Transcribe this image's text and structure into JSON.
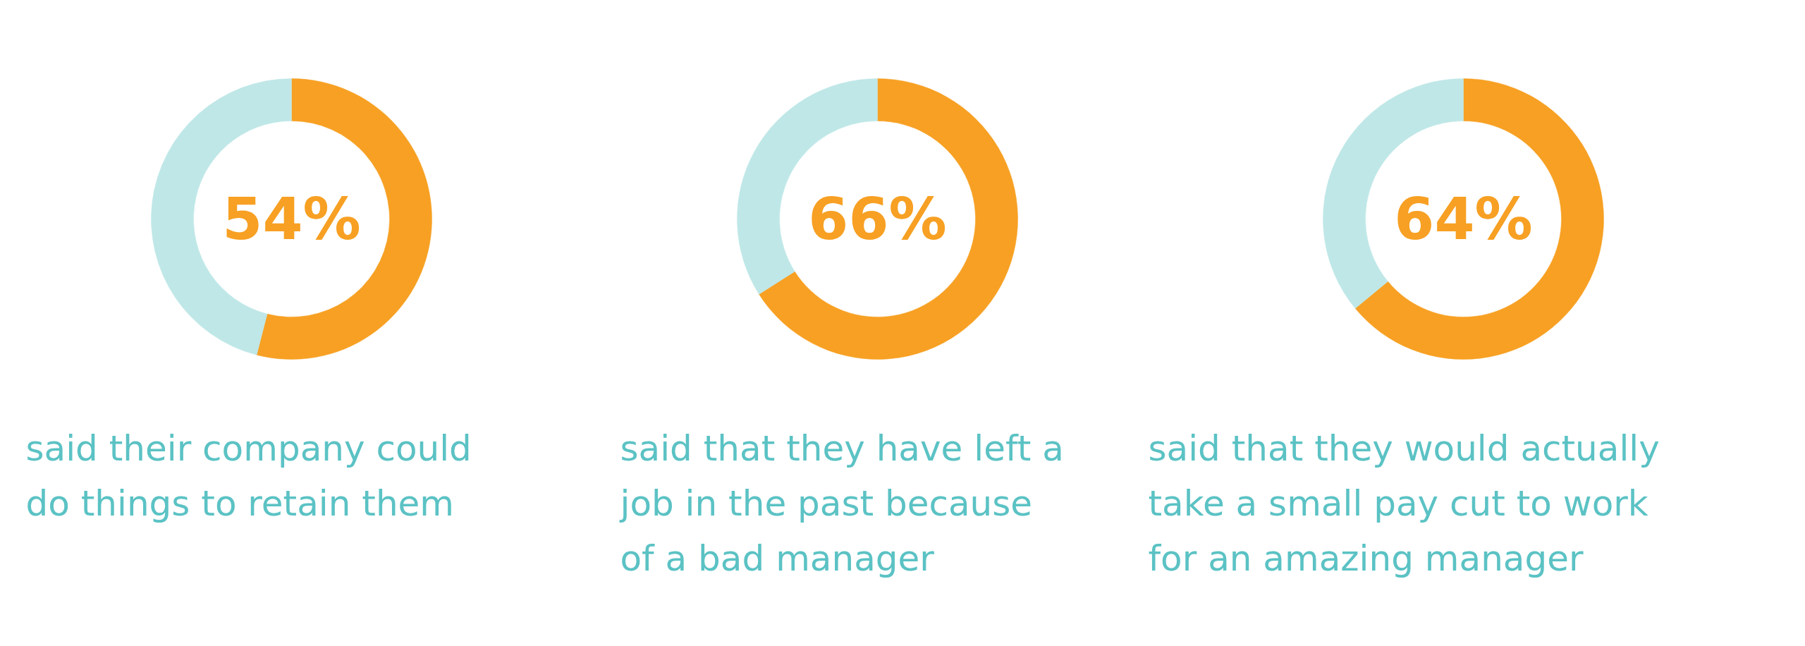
{
  "chart_data": [
    {
      "type": "donut",
      "title": "said their company could\ndo things to retain them",
      "categories": [
        null,
        null
      ],
      "values": [
        54,
        46
      ],
      "colors": [
        "#f7a023",
        "#bfe7e7"
      ],
      "annotations": [
        "54%"
      ]
    },
    {
      "type": "donut",
      "title": "said that they have left a\njob in the past because\nof a bad manager",
      "categories": [
        null,
        null
      ],
      "values": [
        66,
        34
      ],
      "colors": [
        "#f7a023",
        "#bfe7e7"
      ],
      "annotations": [
        "66%"
      ]
    },
    {
      "type": "donut",
      "title": "said that they would actually\ntake a small pay cut to work\nfor an amazing manager",
      "categories": [
        null,
        null
      ],
      "values": [
        64,
        36
      ],
      "colors": [
        "#f7a023",
        "#bfe7e7"
      ],
      "annotations": [
        "64%"
      ]
    }
  ]
}
